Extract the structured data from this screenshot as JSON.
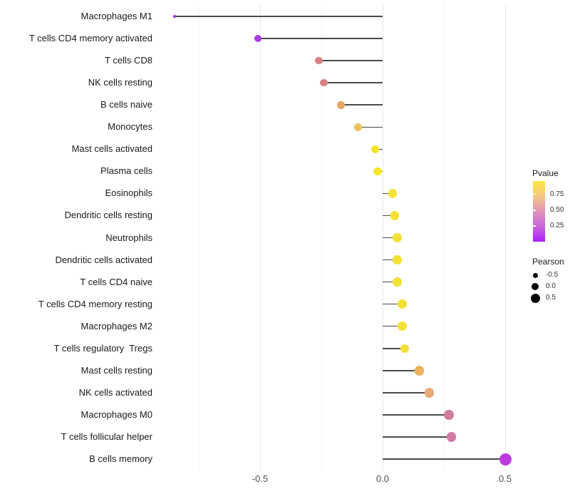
{
  "chart_data": {
    "type": "lollipop",
    "title": "",
    "xlabel": "",
    "ylabel": "",
    "x_ticks": [
      {
        "value": -0.5,
        "label": "-0.5"
      },
      {
        "value": 0.0,
        "label": "0.0"
      },
      {
        "value": 0.5,
        "label": "0.5"
      }
    ],
    "x_minor_gridlines": [
      -0.75,
      -0.25,
      0.25
    ],
    "x_range": [
      -0.88,
      0.56
    ],
    "grid": "on",
    "points": [
      {
        "label": "Macrophages M1",
        "pearson": -0.85,
        "color": "#9C2AD6",
        "diameter": 4
      },
      {
        "label": "T cells CD4 memory activated",
        "pearson": -0.51,
        "color": "#A93CDB",
        "diameter": 10
      },
      {
        "label": "T cells CD8",
        "pearson": -0.26,
        "color": "#D98082",
        "diameter": 10.5
      },
      {
        "label": "NK cells resting",
        "pearson": -0.24,
        "color": "#D98082",
        "diameter": 10.5
      },
      {
        "label": "B cells naive",
        "pearson": -0.17,
        "color": "#E7A45F",
        "diameter": 11
      },
      {
        "label": "Monocytes",
        "pearson": -0.1,
        "color": "#EEC25B",
        "diameter": 11
      },
      {
        "label": "Mast cells activated",
        "pearson": -0.03,
        "color": "#F5E726",
        "diameter": 11.5
      },
      {
        "label": "Plasma cells",
        "pearson": -0.02,
        "color": "#F5E726",
        "diameter": 11.5
      },
      {
        "label": "Eosinophils",
        "pearson": 0.04,
        "color": "#F4E136",
        "diameter": 12.5
      },
      {
        "label": "Dendritic cells resting",
        "pearson": 0.05,
        "color": "#F4E136",
        "diameter": 12.5
      },
      {
        "label": "Neutrophils",
        "pearson": 0.06,
        "color": "#F4E136",
        "diameter": 12.5
      },
      {
        "label": "Dendritic cells activated",
        "pearson": 0.06,
        "color": "#F4E136",
        "diameter": 12.5
      },
      {
        "label": "T cells CD4 naive",
        "pearson": 0.06,
        "color": "#F4E136",
        "diameter": 12.5
      },
      {
        "label": "T cells CD4 memory resting",
        "pearson": 0.08,
        "color": "#F4E136",
        "diameter": 12.5
      },
      {
        "label": "Macrophages M2",
        "pearson": 0.08,
        "color": "#F4E136",
        "diameter": 12.5
      },
      {
        "label": "T cells regulatory  Tregs",
        "pearson": 0.09,
        "color": "#F4E136",
        "diameter": 12.5
      },
      {
        "label": "Mast cells resting",
        "pearson": 0.15,
        "color": "#ECB15D",
        "diameter": 13.5
      },
      {
        "label": "NK cells activated",
        "pearson": 0.19,
        "color": "#EAA878",
        "diameter": 13.5
      },
      {
        "label": "Macrophages M0",
        "pearson": 0.27,
        "color": "#D27B9F",
        "diameter": 13.5
      },
      {
        "label": "T cells follicular helper",
        "pearson": 0.28,
        "color": "#D679A7",
        "diameter": 13.5
      },
      {
        "label": "B cells memory",
        "pearson": 0.5,
        "color": "#BB3ADC",
        "diameter": 17
      }
    ],
    "legend": {
      "position": "right",
      "pvalue": {
        "title": "Pvalue",
        "gradient_top_to_bottom": [
          "#FAE93F",
          "#F3C884",
          "#E293B9",
          "#CB65DE",
          "#AC1FF2"
        ],
        "ticks": [
          {
            "label": "0.75",
            "pos": 0.22
          },
          {
            "label": "0.50",
            "pos": 0.48
          },
          {
            "label": "0.25",
            "pos": 0.74
          }
        ]
      },
      "pearson": {
        "title": "Pearson",
        "dot_color": "#000000",
        "items": [
          {
            "label": "-0.5",
            "diameter": 7
          },
          {
            "label": "0.0",
            "diameter": 10
          },
          {
            "label": "0.5",
            "diameter": 13
          }
        ]
      }
    },
    "style": {
      "stem_color": "#4a4a4a",
      "major_grid_color": "#e9e9e9",
      "minor_grid_color": "#f4f4f4",
      "axis_text_color": "#4d4d4d",
      "category_text_color": "#1a1a1a",
      "background": "#ffffff"
    }
  }
}
